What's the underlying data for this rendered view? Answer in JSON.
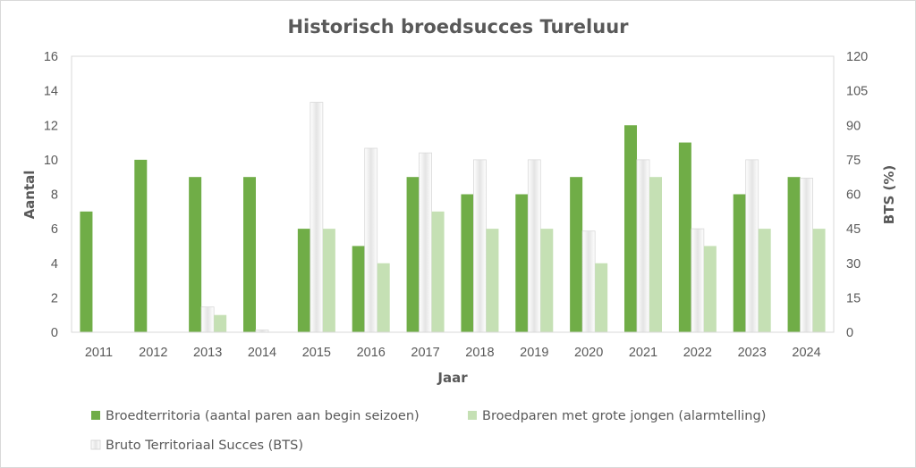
{
  "chart_data": {
    "type": "bar",
    "title": "Historisch broedsucces Tureluur",
    "xlabel": "Jaar",
    "ylabel": "Aantal",
    "y2label": "BTS (%)",
    "ylim": [
      0,
      16
    ],
    "y2lim": [
      0,
      120
    ],
    "yticks": [
      0,
      2,
      4,
      6,
      8,
      10,
      12,
      14,
      16
    ],
    "y2ticks": [
      0,
      15,
      30,
      45,
      60,
      75,
      90,
      105,
      120
    ],
    "categories": [
      "2011",
      "2012",
      "2013",
      "2014",
      "2015",
      "2016",
      "2017",
      "2018",
      "2019",
      "2020",
      "2021",
      "2022",
      "2023",
      "2024"
    ],
    "grid": false,
    "legend_position": "bottom",
    "series": [
      {
        "name": "Broedterritoria (aantal paren aan begin seizoen)",
        "axis": "left",
        "color": "#70ad47",
        "values": [
          7,
          10,
          9,
          9,
          6,
          5,
          9,
          8,
          8,
          9,
          12,
          11,
          8,
          9
        ]
      },
      {
        "name": "Bruto Territoriaal Succes (BTS)",
        "axis": "right",
        "color": "#f2f2f2",
        "values": [
          0,
          0,
          11,
          1,
          100,
          80,
          78,
          75,
          75,
          44,
          75,
          45,
          75,
          67
        ]
      },
      {
        "name": "Broedparen met grote jongen (alarmtelling)",
        "axis": "left",
        "color": "#c5e0b4",
        "values": [
          0,
          0,
          1,
          0,
          6,
          4,
          7,
          6,
          6,
          4,
          9,
          5,
          6,
          6
        ]
      }
    ]
  }
}
